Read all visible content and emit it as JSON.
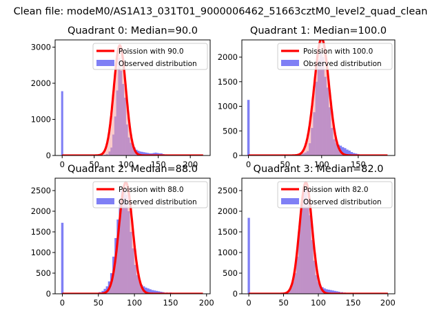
{
  "figure": {
    "suptitle": "Clean file: modeM0/AS1A13_031T01_9000006462_51663cztM0_level2_quad_clean"
  },
  "colors": {
    "hist": "#7f7ff5",
    "curve": "#ff0000",
    "band": "#f5a0a0"
  },
  "chart_data": [
    {
      "type": "bar",
      "title": "Quadrant 0: Median=90.0",
      "xlim": [
        -11,
        231
      ],
      "ylim": [
        0,
        3200
      ],
      "xticks": [
        0,
        50,
        100,
        150,
        200
      ],
      "yticks": [
        0,
        1000,
        2000,
        3000
      ],
      "median": 90,
      "legend": {
        "location": "top-right",
        "entries": [
          "Poission with 90.0",
          "Observed distribution"
        ]
      },
      "outlier": {
        "x": 0,
        "value": 1780
      },
      "hist": [
        {
          "x": 67,
          "value": 20
        },
        {
          "x": 70,
          "value": 40
        },
        {
          "x": 74,
          "value": 110
        },
        {
          "x": 77,
          "value": 220
        },
        {
          "x": 80,
          "value": 580
        },
        {
          "x": 83,
          "value": 1080
        },
        {
          "x": 86,
          "value": 1800
        },
        {
          "x": 89,
          "value": 2700
        },
        {
          "x": 92,
          "value": 2350
        },
        {
          "x": 95,
          "value": 1980
        },
        {
          "x": 98,
          "value": 1600
        },
        {
          "x": 101,
          "value": 860
        },
        {
          "x": 104,
          "value": 500
        },
        {
          "x": 107,
          "value": 350
        },
        {
          "x": 110,
          "value": 260
        },
        {
          "x": 113,
          "value": 220
        },
        {
          "x": 116,
          "value": 160
        },
        {
          "x": 119,
          "value": 130
        },
        {
          "x": 122,
          "value": 110
        },
        {
          "x": 125,
          "value": 100
        },
        {
          "x": 128,
          "value": 90
        },
        {
          "x": 131,
          "value": 80
        },
        {
          "x": 134,
          "value": 70
        },
        {
          "x": 137,
          "value": 60
        },
        {
          "x": 140,
          "value": 60
        },
        {
          "x": 143,
          "value": 70
        },
        {
          "x": 146,
          "value": 80
        },
        {
          "x": 149,
          "value": 70
        },
        {
          "x": 152,
          "value": 60
        },
        {
          "x": 155,
          "value": 60
        },
        {
          "x": 158,
          "value": 40
        },
        {
          "x": 162,
          "value": 30
        },
        {
          "x": 166,
          "value": 20
        },
        {
          "x": 170,
          "value": 15
        },
        {
          "x": 175,
          "value": 10
        }
      ],
      "curve": {
        "mean": 90,
        "peak": 3050,
        "xrange": [
          0,
          220
        ]
      }
    },
    {
      "type": "bar",
      "title": "Quadrant 1: Median=100.0",
      "xlim": [
        -9,
        200
      ],
      "ylim": [
        0,
        2350
      ],
      "xticks": [
        0,
        50,
        100,
        150
      ],
      "yticks": [
        0,
        500,
        1000,
        1500,
        2000
      ],
      "median": 100,
      "legend": {
        "location": "top-right",
        "entries": [
          "Poission with 100.0",
          "Observed distribution"
        ]
      },
      "outlier": {
        "x": 0,
        "value": 1130
      },
      "hist": [
        {
          "x": 72,
          "value": 20
        },
        {
          "x": 75,
          "value": 40
        },
        {
          "x": 78,
          "value": 60
        },
        {
          "x": 81,
          "value": 90
        },
        {
          "x": 84,
          "value": 250
        },
        {
          "x": 87,
          "value": 560
        },
        {
          "x": 90,
          "value": 880
        },
        {
          "x": 93,
          "value": 1500
        },
        {
          "x": 96,
          "value": 1950
        },
        {
          "x": 99,
          "value": 2100
        },
        {
          "x": 102,
          "value": 2000
        },
        {
          "x": 105,
          "value": 1600
        },
        {
          "x": 108,
          "value": 1380
        },
        {
          "x": 111,
          "value": 980
        },
        {
          "x": 114,
          "value": 560
        },
        {
          "x": 117,
          "value": 330
        },
        {
          "x": 120,
          "value": 250
        },
        {
          "x": 123,
          "value": 220
        },
        {
          "x": 126,
          "value": 200
        },
        {
          "x": 129,
          "value": 170
        },
        {
          "x": 132,
          "value": 150
        },
        {
          "x": 135,
          "value": 120
        },
        {
          "x": 138,
          "value": 100
        },
        {
          "x": 141,
          "value": 70
        },
        {
          "x": 144,
          "value": 50
        },
        {
          "x": 147,
          "value": 40
        },
        {
          "x": 150,
          "value": 30
        },
        {
          "x": 154,
          "value": 20
        },
        {
          "x": 158,
          "value": 10
        }
      ],
      "curve": {
        "mean": 100,
        "peak": 2380,
        "xrange": [
          0,
          190
        ]
      }
    },
    {
      "type": "bar",
      "title": "Quadrant 2: Median=88.0",
      "xlim": [
        -10,
        205
      ],
      "ylim": [
        0,
        2800
      ],
      "xticks": [
        0,
        50,
        100,
        150,
        200
      ],
      "yticks": [
        0,
        500,
        1000,
        1500,
        2000,
        2500
      ],
      "median": 88,
      "legend": {
        "location": "top-right",
        "entries": [
          "Poission with 88.0",
          "Observed distribution"
        ]
      },
      "outlier": {
        "x": 0,
        "value": 1720
      },
      "hist": [
        {
          "x": 48,
          "value": 20
        },
        {
          "x": 52,
          "value": 40
        },
        {
          "x": 56,
          "value": 70
        },
        {
          "x": 59,
          "value": 120
        },
        {
          "x": 62,
          "value": 180
        },
        {
          "x": 65,
          "value": 300
        },
        {
          "x": 68,
          "value": 500
        },
        {
          "x": 71,
          "value": 900
        },
        {
          "x": 74,
          "value": 1350
        },
        {
          "x": 77,
          "value": 1800
        },
        {
          "x": 80,
          "value": 2250
        },
        {
          "x": 83,
          "value": 2500
        },
        {
          "x": 86,
          "value": 2550
        },
        {
          "x": 89,
          "value": 2400
        },
        {
          "x": 92,
          "value": 2000
        },
        {
          "x": 95,
          "value": 1500
        },
        {
          "x": 98,
          "value": 1100
        },
        {
          "x": 101,
          "value": 700
        },
        {
          "x": 104,
          "value": 450
        },
        {
          "x": 107,
          "value": 300
        },
        {
          "x": 110,
          "value": 220
        },
        {
          "x": 113,
          "value": 180
        },
        {
          "x": 116,
          "value": 150
        },
        {
          "x": 119,
          "value": 130
        },
        {
          "x": 122,
          "value": 110
        },
        {
          "x": 125,
          "value": 90
        },
        {
          "x": 128,
          "value": 80
        },
        {
          "x": 131,
          "value": 70
        },
        {
          "x": 134,
          "value": 60
        },
        {
          "x": 137,
          "value": 50
        },
        {
          "x": 140,
          "value": 40
        },
        {
          "x": 145,
          "value": 30
        },
        {
          "x": 150,
          "value": 30
        },
        {
          "x": 155,
          "value": 20
        },
        {
          "x": 160,
          "value": 15
        },
        {
          "x": 170,
          "value": 10
        }
      ],
      "curve": {
        "mean": 88,
        "peak": 2700,
        "xrange": [
          0,
          195
        ]
      }
    },
    {
      "type": "bar",
      "title": "Quadrant 3: Median=82.0",
      "xlim": [
        -10,
        210
      ],
      "ylim": [
        0,
        2800
      ],
      "xticks": [
        0,
        50,
        100,
        150,
        200
      ],
      "yticks": [
        0,
        500,
        1000,
        1500,
        2000,
        2500
      ],
      "median": 82,
      "legend": {
        "location": "top-right",
        "entries": [
          "Poission with 82.0",
          "Observed distribution"
        ]
      },
      "outlier": {
        "x": 0,
        "value": 1840
      },
      "hist": [
        {
          "x": 52,
          "value": 20
        },
        {
          "x": 55,
          "value": 40
        },
        {
          "x": 58,
          "value": 80
        },
        {
          "x": 61,
          "value": 150
        },
        {
          "x": 64,
          "value": 300
        },
        {
          "x": 67,
          "value": 500
        },
        {
          "x": 70,
          "value": 900
        },
        {
          "x": 73,
          "value": 1650
        },
        {
          "x": 76,
          "value": 2200
        },
        {
          "x": 79,
          "value": 2500
        },
        {
          "x": 82,
          "value": 2550
        },
        {
          "x": 85,
          "value": 2300
        },
        {
          "x": 88,
          "value": 1900
        },
        {
          "x": 91,
          "value": 1300
        },
        {
          "x": 94,
          "value": 800
        },
        {
          "x": 97,
          "value": 450
        },
        {
          "x": 100,
          "value": 280
        },
        {
          "x": 103,
          "value": 200
        },
        {
          "x": 106,
          "value": 160
        },
        {
          "x": 109,
          "value": 130
        },
        {
          "x": 112,
          "value": 110
        },
        {
          "x": 115,
          "value": 100
        },
        {
          "x": 118,
          "value": 90
        },
        {
          "x": 121,
          "value": 80
        },
        {
          "x": 124,
          "value": 70
        },
        {
          "x": 127,
          "value": 60
        },
        {
          "x": 130,
          "value": 50
        },
        {
          "x": 134,
          "value": 40
        },
        {
          "x": 138,
          "value": 30
        },
        {
          "x": 142,
          "value": 20
        },
        {
          "x": 150,
          "value": 15
        },
        {
          "x": 160,
          "value": 10
        }
      ],
      "curve": {
        "mean": 82,
        "peak": 2700,
        "xrange": [
          0,
          200
        ]
      }
    }
  ]
}
